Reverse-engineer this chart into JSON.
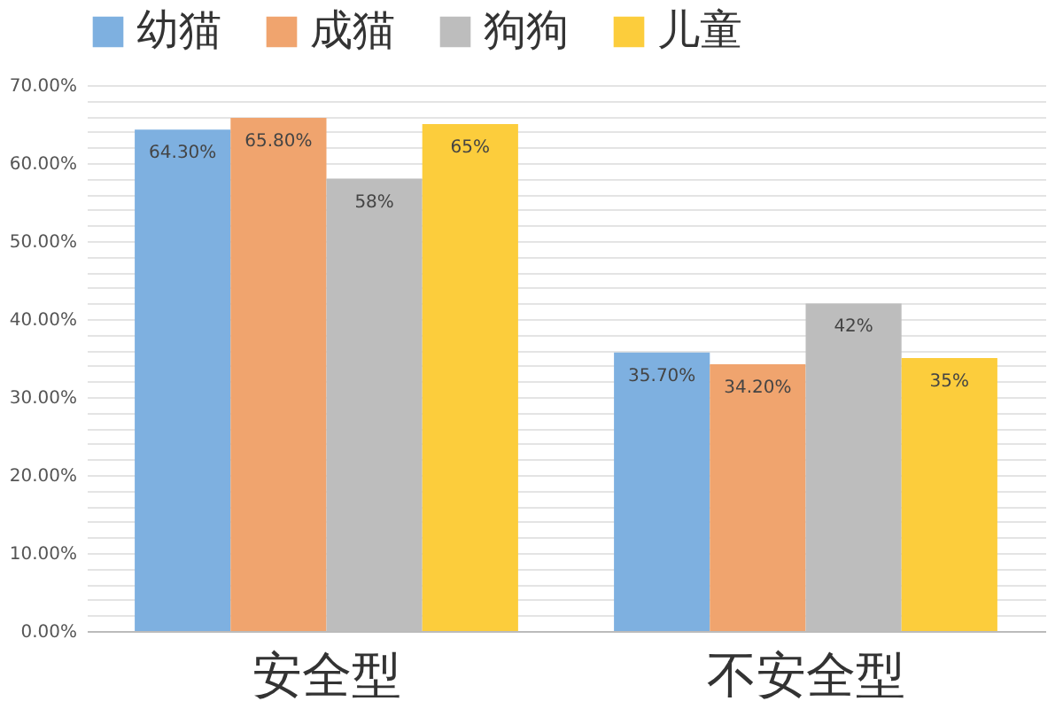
{
  "chart_data": {
    "type": "bar",
    "categories": [
      "安全型",
      "不安全型"
    ],
    "series": [
      {
        "name": "幼猫",
        "color": "#7eb0e0",
        "values": [
          64.3,
          35.7
        ],
        "value_labels": [
          "64.30%",
          "35.70%"
        ]
      },
      {
        "name": "成猫",
        "color": "#f0a46e",
        "values": [
          65.8,
          34.2
        ],
        "value_labels": [
          "65.80%",
          "34.20%"
        ]
      },
      {
        "name": "狗狗",
        "color": "#bdbdbd",
        "values": [
          58,
          42
        ],
        "value_labels": [
          "58%",
          "42%"
        ]
      },
      {
        "name": "儿童",
        "color": "#fccd3c",
        "values": [
          65,
          35
        ],
        "value_labels": [
          "65%",
          "35%"
        ]
      }
    ],
    "ylim": [
      0,
      70
    ],
    "yticks": [
      {
        "value": 0,
        "label": "0.00%"
      },
      {
        "value": 2,
        "label": null
      },
      {
        "value": 4,
        "label": null
      },
      {
        "value": 6,
        "label": null
      },
      {
        "value": 8,
        "label": null
      },
      {
        "value": 10,
        "label": "10.00%"
      },
      {
        "value": 12,
        "label": null
      },
      {
        "value": 14,
        "label": null
      },
      {
        "value": 16,
        "label": null
      },
      {
        "value": 18,
        "label": null
      },
      {
        "value": 20,
        "label": "20.00%"
      },
      {
        "value": 22,
        "label": null
      },
      {
        "value": 24,
        "label": null
      },
      {
        "value": 26,
        "label": null
      },
      {
        "value": 28,
        "label": null
      },
      {
        "value": 30,
        "label": "30.00%"
      },
      {
        "value": 32,
        "label": null
      },
      {
        "value": 34,
        "label": null
      },
      {
        "value": 36,
        "label": null
      },
      {
        "value": 38,
        "label": null
      },
      {
        "value": 40,
        "label": "40.00%"
      },
      {
        "value": 42,
        "label": null
      },
      {
        "value": 44,
        "label": null
      },
      {
        "value": 46,
        "label": null
      },
      {
        "value": 48,
        "label": null
      },
      {
        "value": 50,
        "label": "50.00%"
      },
      {
        "value": 52,
        "label": null
      },
      {
        "value": 54,
        "label": null
      },
      {
        "value": 56,
        "label": null
      },
      {
        "value": 58,
        "label": null
      },
      {
        "value": 60,
        "label": "60.00%"
      },
      {
        "value": 62,
        "label": null
      },
      {
        "value": 64,
        "label": null
      },
      {
        "value": 66,
        "label": null
      },
      {
        "value": 68,
        "label": null
      },
      {
        "value": 70,
        "label": "70.00%"
      }
    ],
    "grid": "y",
    "legend": "top"
  }
}
